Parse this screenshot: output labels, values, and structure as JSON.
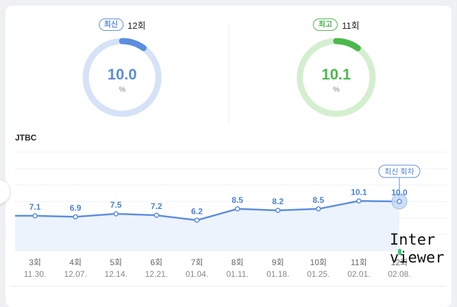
{
  "ratings": [
    {
      "badge": "최신",
      "episode": "12회",
      "value": "10.0",
      "percent": 10.0,
      "unit": "%",
      "color": "#5b8de0",
      "track": "#d6e2f8"
    },
    {
      "badge": "최고",
      "episode": "11회",
      "value": "10.1",
      "percent": 10.1,
      "unit": "%",
      "color": "#4cb84c",
      "track": "#d4efcf"
    }
  ],
  "channel": "JTBC",
  "latest_label": "최신 회차",
  "colors": {
    "line": "#5b8de0",
    "fill": "#edf3fd",
    "grid": "#eef0f3",
    "label": "#4a82d8"
  },
  "chart_data": {
    "type": "line",
    "categories": [
      "3회",
      "4회",
      "5회",
      "6회",
      "7회",
      "8회",
      "9회",
      "10회",
      "11회",
      "12회"
    ],
    "dates": [
      "11.30.",
      "12.07.",
      "12.14.",
      "12.21.",
      "01.04.",
      "01.11.",
      "01.18.",
      "01.25.",
      "02.01.",
      "02.08."
    ],
    "series": [
      {
        "values": [
          7.1,
          6.9,
          7.5,
          7.2,
          6.2,
          8.5,
          8.2,
          8.5,
          10.1,
          10.0
        ]
      }
    ],
    "ylim": [
      0,
      20
    ],
    "grid": true
  },
  "watermark": [
    "Inter",
    "viewer"
  ]
}
